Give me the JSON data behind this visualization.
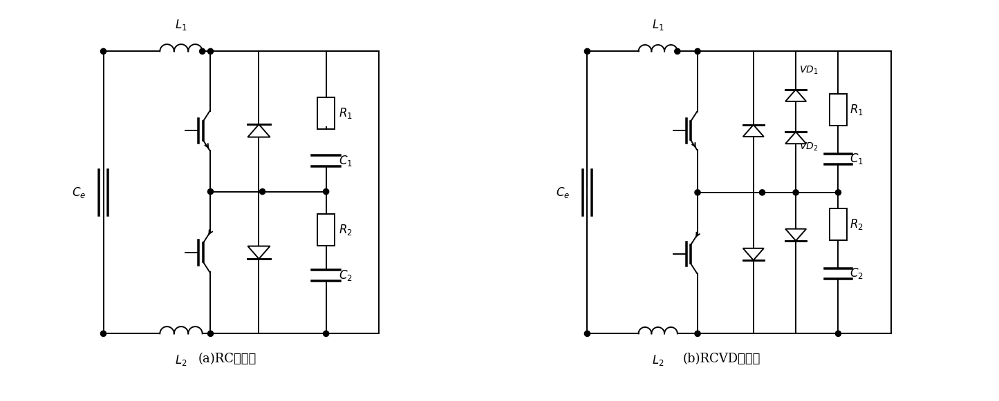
{
  "title_a": "(a)RC吸收型",
  "title_b": "(b)RCVD吸收型",
  "bg_color": "#ffffff",
  "line_color": "#000000",
  "fig_width": 14.45,
  "fig_height": 5.81
}
